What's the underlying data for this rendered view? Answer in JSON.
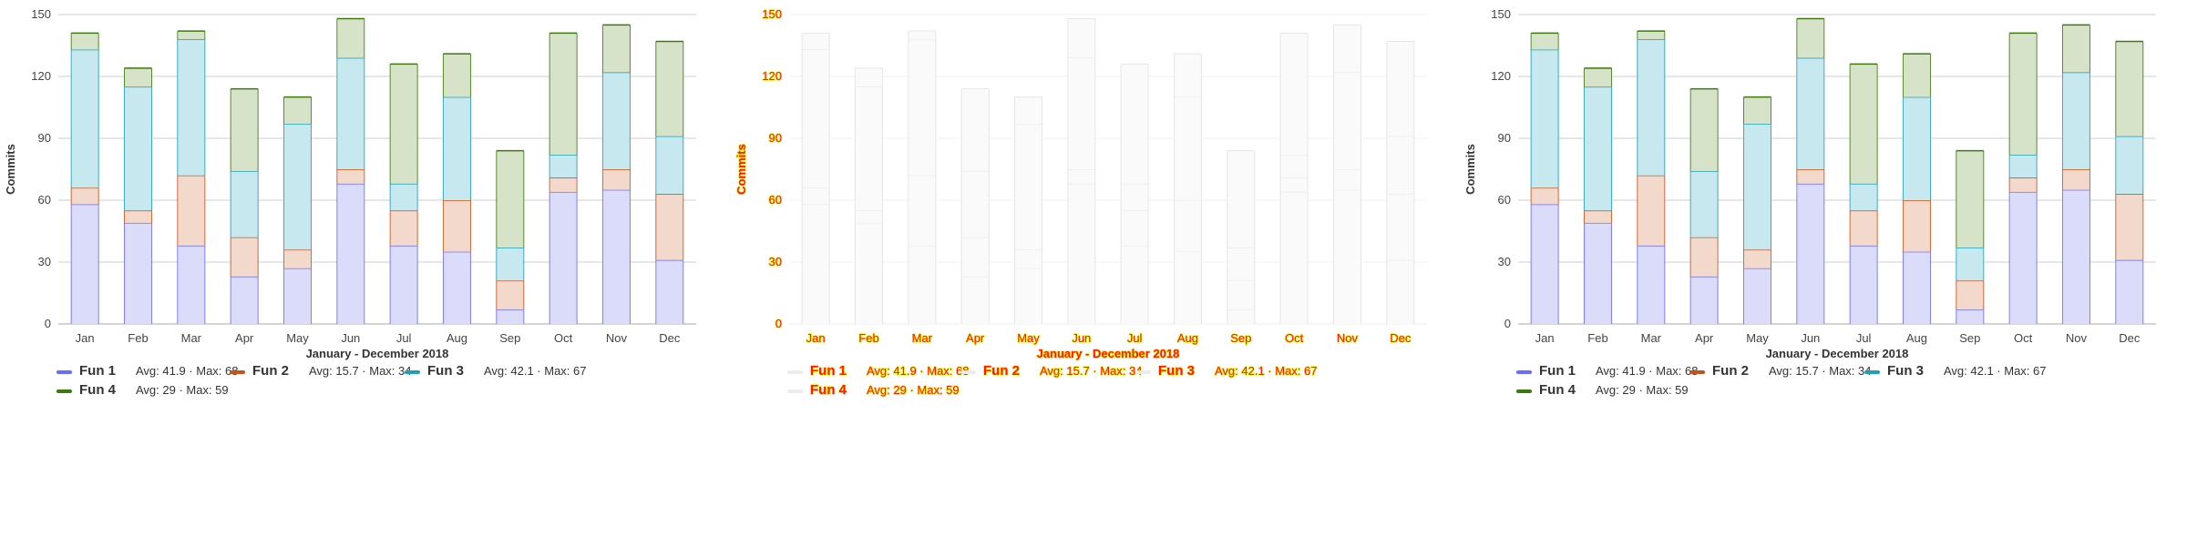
{
  "colors": {
    "Fun 1": {
      "stroke": "#6b6bff",
      "fill": "#dadcfa"
    },
    "Fun 2": {
      "stroke": "#c8531a",
      "fill": "#f3d8cc"
    },
    "Fun 3": {
      "stroke": "#1f9fb8",
      "fill": "#c8e8f0"
    },
    "Fun 4": {
      "stroke": "#3c7a0f",
      "fill": "#d6e3c8"
    },
    "ghost_fill": "#fafafa",
    "ghost_stroke": "#e6e6e6",
    "ghost_text": "#ff1a00",
    "ghost_text_outline": "#ffe600"
  },
  "chart_data": [
    {
      "type": "bar",
      "stacked": true,
      "categories": [
        "Jan",
        "Feb",
        "Mar",
        "Apr",
        "May",
        "Jun",
        "Jul",
        "Aug",
        "Sep",
        "Oct",
        "Nov",
        "Dec"
      ],
      "series": [
        {
          "name": "Fun 1",
          "values": [
            58,
            49,
            38,
            23,
            27,
            68,
            38,
            35,
            7,
            64,
            65,
            31
          ],
          "legend_stats": "Avg: 41.9 · Max: 68"
        },
        {
          "name": "Fun 2",
          "values": [
            8,
            6,
            34,
            19,
            9,
            7,
            17,
            25,
            14,
            7,
            10,
            32
          ],
          "legend_stats": "Avg: 15.7 · Max: 34"
        },
        {
          "name": "Fun 3",
          "values": [
            67,
            60,
            66,
            32,
            61,
            54,
            13,
            50,
            16,
            11,
            47,
            28
          ],
          "legend_stats": "Avg: 42.1 · Max: 67"
        },
        {
          "name": "Fun 4",
          "values": [
            8,
            9,
            4,
            40,
            13,
            19,
            58,
            21,
            47,
            59,
            23,
            46
          ],
          "legend_stats": "Avg: 29 · Max: 59"
        }
      ],
      "xlabel": "January - December 2018",
      "ylabel": "Commits",
      "ylim": [
        0,
        150
      ],
      "yticks": [
        0,
        30,
        60,
        90,
        120,
        150
      ],
      "grid": true,
      "legend_position": "bottom"
    },
    {
      "type": "bar",
      "stacked": true,
      "categories": [
        "Jan",
        "Feb",
        "Mar",
        "Apr",
        "May",
        "Jun",
        "Jul",
        "Aug",
        "Sep",
        "Oct",
        "Nov",
        "Dec"
      ],
      "series": [
        {
          "name": "Fun 1",
          "values": [
            58,
            49,
            38,
            23,
            27,
            68,
            38,
            35,
            7,
            64,
            65,
            31
          ],
          "legend_stats": "Avg: 41.9 · Max: 68"
        },
        {
          "name": "Fun 2",
          "values": [
            8,
            6,
            34,
            19,
            9,
            7,
            17,
            25,
            14,
            7,
            10,
            32
          ],
          "legend_stats": "Avg: 15.7 · Max: 34"
        },
        {
          "name": "Fun 3",
          "values": [
            67,
            60,
            66,
            32,
            61,
            54,
            13,
            50,
            16,
            11,
            47,
            28
          ],
          "legend_stats": "Avg: 42.1 · Max: 67"
        },
        {
          "name": "Fun 4",
          "values": [
            8,
            9,
            4,
            40,
            13,
            19,
            58,
            21,
            47,
            59,
            23,
            46
          ],
          "legend_stats": "Avg: 29 · Max: 59"
        }
      ],
      "xlabel": "January - December 2018",
      "ylabel": "Commits",
      "ylim": [
        0,
        150
      ],
      "yticks": [
        0,
        30,
        60,
        90,
        120,
        150
      ],
      "grid": true,
      "legend_position": "bottom",
      "style": "ghost"
    },
    {
      "type": "bar",
      "stacked": true,
      "categories": [
        "Jan",
        "Feb",
        "Mar",
        "Apr",
        "May",
        "Jun",
        "Jul",
        "Aug",
        "Sep",
        "Oct",
        "Nov",
        "Dec"
      ],
      "series": [
        {
          "name": "Fun 1",
          "values": [
            58,
            49,
            38,
            23,
            27,
            68,
            38,
            35,
            7,
            64,
            65,
            31
          ],
          "legend_stats": "Avg: 41.9 · Max: 68"
        },
        {
          "name": "Fun 2",
          "values": [
            8,
            6,
            34,
            19,
            9,
            7,
            17,
            25,
            14,
            7,
            10,
            32
          ],
          "legend_stats": "Avg: 15.7 · Max: 34"
        },
        {
          "name": "Fun 3",
          "values": [
            67,
            60,
            66,
            32,
            61,
            54,
            13,
            50,
            16,
            11,
            47,
            28
          ],
          "legend_stats": "Avg: 42.1 · Max: 67"
        },
        {
          "name": "Fun 4",
          "values": [
            8,
            9,
            4,
            40,
            13,
            19,
            58,
            21,
            47,
            59,
            23,
            46
          ],
          "legend_stats": "Avg: 29 · Max: 59"
        }
      ],
      "xlabel": "January - December 2018",
      "ylabel": "Commits",
      "ylim": [
        0,
        150
      ],
      "yticks": [
        0,
        30,
        60,
        90,
        120,
        150
      ],
      "grid": true,
      "legend_position": "bottom"
    }
  ]
}
